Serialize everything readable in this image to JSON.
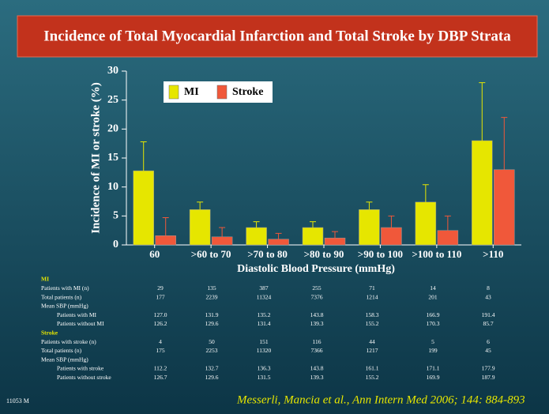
{
  "chart_data": {
    "type": "bar",
    "title": "Incidence of Total Myocardial Infarction and Total Stroke by DBP Strata",
    "y_label": "Incidence of MI or stroke (%)",
    "x_label": "Diastolic Blood Pressure (mmHg)",
    "categories": [
      "60",
      ">60 to 70",
      ">70 to 80",
      ">80 to 90",
      ">90 to 100",
      ">100 to 110",
      ">110"
    ],
    "series": [
      {
        "name": "MI",
        "color": "#e6e600",
        "values": [
          12.8,
          6.1,
          3.0,
          3.0,
          6.1,
          7.4,
          18.0
        ],
        "errors": [
          5.0,
          1.3,
          1.0,
          1.0,
          1.3,
          3.0,
          10.0
        ]
      },
      {
        "name": "Stroke",
        "color": "#f0583a",
        "values": [
          1.6,
          1.4,
          1.0,
          1.2,
          3.0,
          2.5,
          13.0
        ],
        "errors": [
          3.1,
          1.6,
          1.0,
          1.1,
          2.0,
          2.5,
          9.0
        ]
      }
    ],
    "ylim": [
      0,
      30
    ],
    "yticks": [
      0,
      5,
      10,
      15,
      20,
      25,
      30
    ]
  },
  "table": {
    "sections": [
      {
        "title": "MI",
        "rows": [
          {
            "label": "Patients with MI (n)",
            "cells": [
              "29",
              "135",
              "387",
              "255",
              "71",
              "14",
              "8"
            ]
          },
          {
            "label": "Total patients (n)",
            "cells": [
              "177",
              "2239",
              "11324",
              "7376",
              "1214",
              "201",
              "43"
            ]
          }
        ],
        "mean_sbp": {
          "title": "Mean SBP (mmHg)",
          "rows": [
            {
              "label": "Patients with MI",
              "cells": [
                "127.0",
                "131.9",
                "135.2",
                "143.8",
                "158.3",
                "166.9",
                "191.4"
              ]
            },
            {
              "label": "Patients without MI",
              "cells": [
                "126.2",
                "129.6",
                "131.4",
                "139.3",
                "155.2",
                "170.3",
                "85.7"
              ]
            }
          ]
        }
      },
      {
        "title": "Stroke",
        "rows": [
          {
            "label": "Patients with stroke (n)",
            "cells": [
              "4",
              "50",
              "151",
              "116",
              "44",
              "5",
              "6"
            ]
          },
          {
            "label": "Total patients (n)",
            "cells": [
              "175",
              "2253",
              "11320",
              "7366",
              "1217",
              "199",
              "45"
            ]
          }
        ],
        "mean_sbp": {
          "title": "Mean SBP (mmHg)",
          "rows": [
            {
              "label": "Patients with stroke",
              "cells": [
                "112.2",
                "132.7",
                "136.3",
                "143.8",
                "161.1",
                "171.1",
                "177.9"
              ]
            },
            {
              "label": "Patients without stroke",
              "cells": [
                "126.7",
                "129.6",
                "131.5",
                "139.3",
                "155.2",
                "169.9",
                "187.9"
              ]
            }
          ]
        }
      }
    ]
  },
  "footer": {
    "code": "11053 M",
    "citation": "Messerli, Mancia et al., Ann Intern Med 2006; 144: 884-893"
  }
}
